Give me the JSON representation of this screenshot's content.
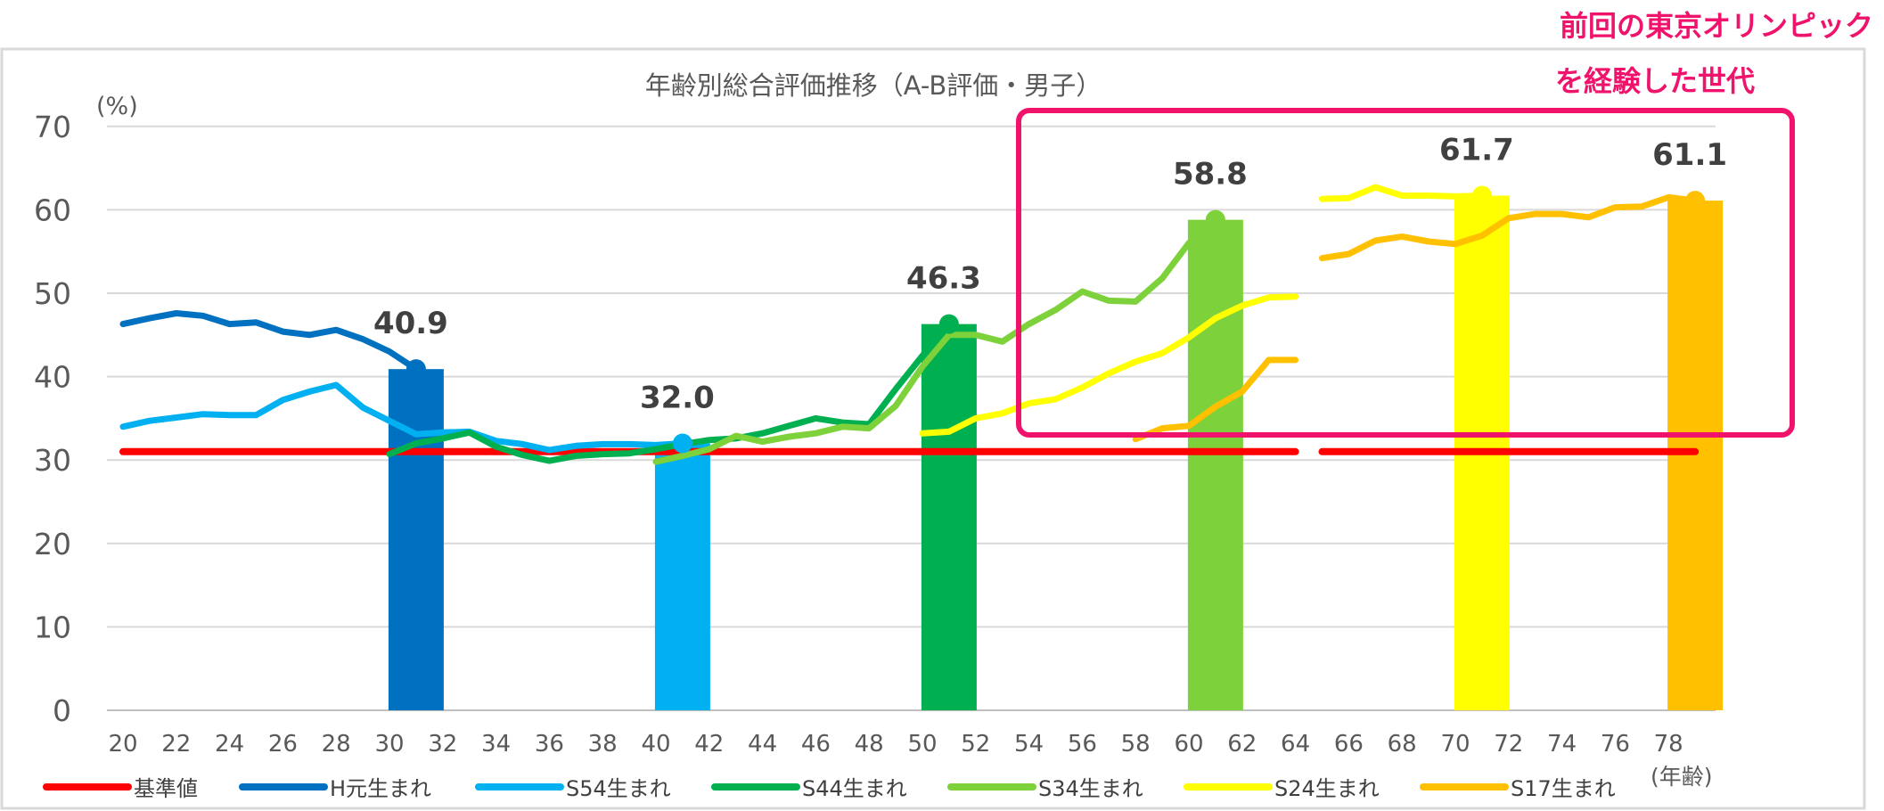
{
  "annotation": {
    "line1": "前回の東京オリンピック",
    "line2": "を経験した世代",
    "color": "#f0136c"
  },
  "chart_data": {
    "type": "line",
    "title": "年齢別総合評価推移（A-B評価・男子）",
    "ylabel": "(%)",
    "xlabel": "(年齢)",
    "ylim": [
      0,
      70
    ],
    "xlim": [
      20,
      79
    ],
    "yticks": [
      0,
      10,
      20,
      30,
      40,
      50,
      60,
      70
    ],
    "xticks": [
      20,
      22,
      24,
      26,
      28,
      30,
      32,
      34,
      36,
      38,
      40,
      42,
      44,
      46,
      48,
      50,
      52,
      54,
      56,
      58,
      60,
      62,
      64,
      66,
      68,
      70,
      72,
      74,
      76,
      78
    ],
    "grid": true,
    "legend_position": "bottom",
    "bars": [
      {
        "series": "H元生まれ",
        "age": 31,
        "value": 40.9,
        "label": "40.9",
        "color": "#0070c0"
      },
      {
        "series": "S54生まれ",
        "age": 41,
        "value": 32.0,
        "label": "32.0",
        "color": "#00b0f0"
      },
      {
        "series": "S44生まれ",
        "age": 51,
        "value": 46.3,
        "label": "46.3",
        "color": "#00b050"
      },
      {
        "series": "S34生まれ",
        "age": 61,
        "value": 58.8,
        "label": "58.8",
        "color": "#7dd13a"
      },
      {
        "series": "S24生まれ",
        "age": 71,
        "value": 61.7,
        "label": "61.7",
        "color": "#ffff00"
      },
      {
        "series": "S17生まれ",
        "age": 79,
        "value": 61.1,
        "label": "61.1",
        "color": "#ffc000"
      }
    ],
    "series": [
      {
        "name": "基準値",
        "color": "#ff0000",
        "segments": [
          [
            [
              20,
              31
            ],
            [
              64,
              31
            ]
          ],
          [
            [
              65,
              31
            ],
            [
              79,
              31
            ]
          ]
        ]
      },
      {
        "name": "H元生まれ",
        "color": "#0070c0",
        "points": [
          [
            20,
            46.3
          ],
          [
            21,
            47
          ],
          [
            22,
            47.6
          ],
          [
            23,
            47.3
          ],
          [
            24,
            46.3
          ],
          [
            25,
            46.5
          ],
          [
            26,
            45.4
          ],
          [
            27,
            45
          ],
          [
            28,
            45.6
          ],
          [
            29,
            44.5
          ],
          [
            30,
            43
          ],
          [
            31,
            40.9
          ]
        ]
      },
      {
        "name": "S54生まれ",
        "color": "#00b0f0",
        "points": [
          [
            20,
            34
          ],
          [
            21,
            34.7
          ],
          [
            22,
            35.1
          ],
          [
            23,
            35.5
          ],
          [
            24,
            35.4
          ],
          [
            25,
            35.4
          ],
          [
            26,
            37.2
          ],
          [
            27,
            38.2
          ],
          [
            28,
            39
          ],
          [
            29,
            36.3
          ],
          [
            30,
            34.7
          ],
          [
            31,
            33.1
          ],
          [
            32,
            33.3
          ],
          [
            33,
            33.4
          ],
          [
            34,
            32.3
          ],
          [
            35,
            31.9
          ],
          [
            36,
            31.2
          ],
          [
            37,
            31.7
          ],
          [
            38,
            31.9
          ],
          [
            39,
            31.9
          ],
          [
            40,
            31.8
          ],
          [
            41,
            32.0
          ]
        ]
      },
      {
        "name": "S44生まれ",
        "color": "#00b050",
        "points": [
          [
            30,
            30.7
          ],
          [
            31,
            32
          ],
          [
            32,
            32.6
          ],
          [
            33,
            33.3
          ],
          [
            34,
            31.6
          ],
          [
            35,
            30.6
          ],
          [
            36,
            29.9
          ],
          [
            37,
            30.5
          ],
          [
            38,
            30.7
          ],
          [
            39,
            30.8
          ],
          [
            40,
            31.3
          ],
          [
            41,
            31.9
          ],
          [
            42,
            32.4
          ],
          [
            43,
            32.6
          ],
          [
            44,
            33.2
          ],
          [
            45,
            34.1
          ],
          [
            46,
            35
          ],
          [
            47,
            34.5
          ],
          [
            48,
            34.3
          ],
          [
            49,
            38.5
          ],
          [
            50,
            42.5
          ],
          [
            51,
            46.3
          ]
        ]
      },
      {
        "name": "S34生まれ",
        "color": "#7dd13a",
        "points": [
          [
            40,
            29.8
          ],
          [
            41,
            30.5
          ],
          [
            42,
            31.3
          ],
          [
            43,
            32.9
          ],
          [
            44,
            32.2
          ],
          [
            45,
            32.8
          ],
          [
            46,
            33.2
          ],
          [
            47,
            34
          ],
          [
            48,
            33.8
          ],
          [
            49,
            36.5
          ],
          [
            50,
            41.2
          ],
          [
            51,
            45
          ],
          [
            52,
            45
          ],
          [
            53,
            44.2
          ],
          [
            54,
            46.3
          ],
          [
            55,
            48
          ],
          [
            56,
            50.2
          ],
          [
            57,
            49.1
          ],
          [
            58,
            49
          ],
          [
            59,
            51.8
          ],
          [
            60,
            56
          ],
          [
            61,
            58.8
          ]
        ]
      },
      {
        "name": "S24生まれ",
        "color": "#ffff00",
        "segments": [
          [
            [
              50,
              33.2
            ],
            [
              51,
              33.4
            ],
            [
              52,
              35
            ],
            [
              53,
              35.6
            ],
            [
              54,
              36.8
            ],
            [
              55,
              37.3
            ],
            [
              56,
              38.7
            ],
            [
              57,
              40.4
            ],
            [
              58,
              41.8
            ],
            [
              59,
              42.8
            ],
            [
              60,
              44.7
            ],
            [
              61,
              47
            ],
            [
              62,
              48.5
            ],
            [
              63,
              49.5
            ],
            [
              64,
              49.6
            ]
          ],
          [
            [
              65,
              61.3
            ],
            [
              66,
              61.4
            ],
            [
              67,
              62.7
            ],
            [
              68,
              61.7
            ],
            [
              69,
              61.7
            ],
            [
              70,
              61.6
            ],
            [
              71,
              61.7
            ]
          ]
        ]
      },
      {
        "name": "S17生まれ",
        "color": "#ffc000",
        "segments": [
          [
            [
              58,
              32.5
            ],
            [
              59,
              33.8
            ],
            [
              60,
              34.1
            ],
            [
              61,
              36.4
            ],
            [
              62,
              38.2
            ],
            [
              63,
              42
            ],
            [
              64,
              42
            ]
          ],
          [
            [
              65,
              54.2
            ],
            [
              66,
              54.7
            ],
            [
              67,
              56.3
            ],
            [
              68,
              56.8
            ],
            [
              69,
              56.2
            ],
            [
              70,
              55.9
            ],
            [
              71,
              56.9
            ],
            [
              72,
              59
            ],
            [
              73,
              59.5
            ],
            [
              74,
              59.5
            ],
            [
              75,
              59.1
            ],
            [
              76,
              60.3
            ],
            [
              77,
              60.4
            ],
            [
              78,
              61.5
            ],
            [
              79,
              61.1
            ]
          ]
        ]
      }
    ],
    "highlight_box": {
      "color": "#f0136c"
    }
  }
}
